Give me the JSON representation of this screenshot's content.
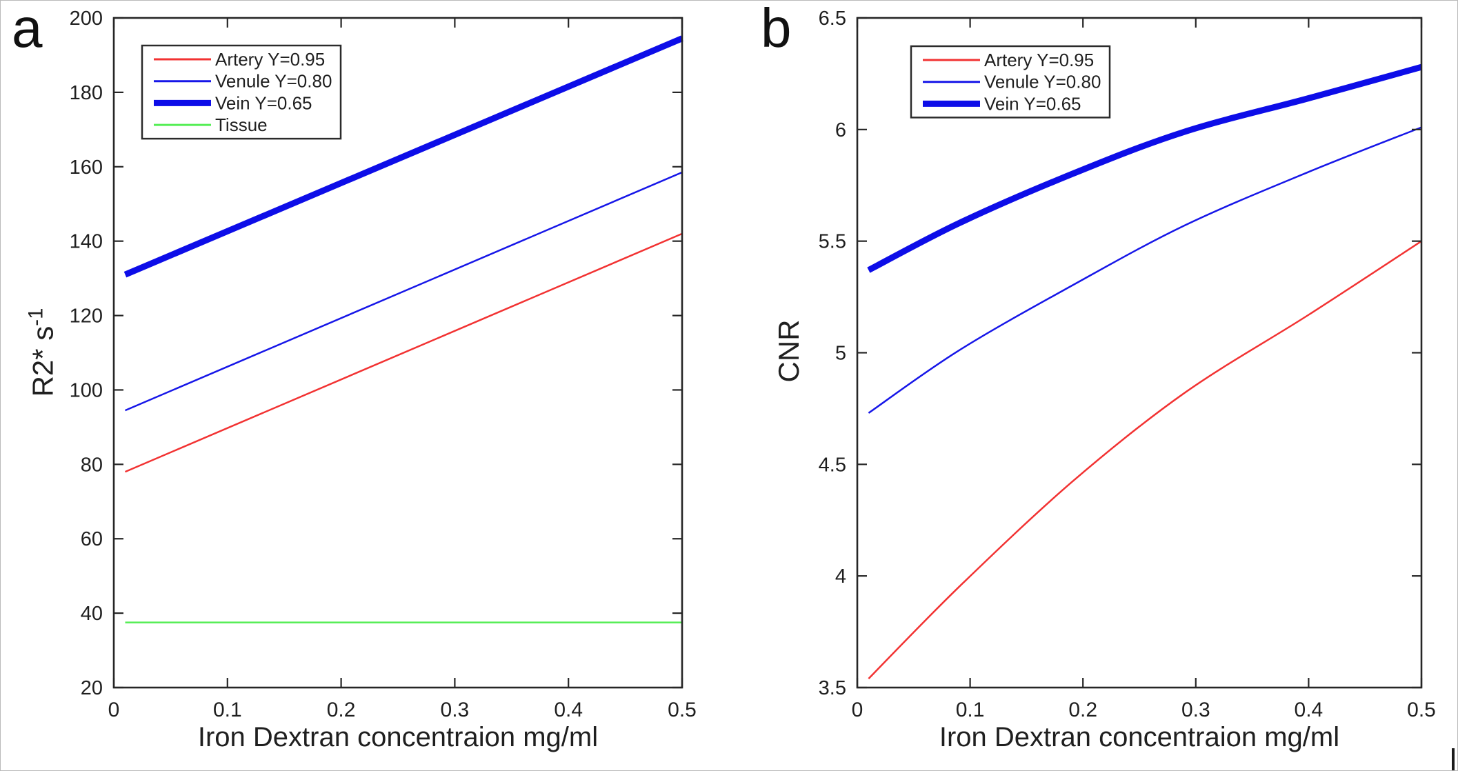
{
  "figure": {
    "background": "#ffffff",
    "border_color": "#b9b9b9",
    "axis_color": "#262626",
    "text_color": "#1f1f1f"
  },
  "chart_data": [
    {
      "type": "line",
      "panel_label": "a",
      "xlabel": "Iron Dextran concentraion mg/ml",
      "ylabel": "R2* s",
      "ylabel_superscript": "-1",
      "xlim": [
        0,
        0.5
      ],
      "ylim": [
        20,
        200
      ],
      "xticks": [
        0,
        0.1,
        0.2,
        0.3,
        0.4,
        0.5
      ],
      "xtick_labels": [
        "0",
        "0.1",
        "0.2",
        "0.3",
        "0.4",
        "0.5"
      ],
      "yticks": [
        20,
        40,
        60,
        80,
        100,
        120,
        140,
        160,
        180,
        200
      ],
      "ytick_labels": [
        "20",
        "40",
        "60",
        "80",
        "100",
        "120",
        "140",
        "160",
        "180",
        "200"
      ],
      "grid": false,
      "legend_position": "upper left inside",
      "series": [
        {
          "name": "Artery Y=0.95",
          "color": "#f23232",
          "line_width": 2.5,
          "x": [
            0.01,
            0.5
          ],
          "y": [
            78,
            142
          ]
        },
        {
          "name": "Venule Y=0.80",
          "color": "#1616e8",
          "line_width": 2.5,
          "x": [
            0.01,
            0.5
          ],
          "y": [
            94.5,
            158.5
          ]
        },
        {
          "name": "Vein Y=0.65",
          "color": "#0d0de8",
          "line_width": 9,
          "x": [
            0.01,
            0.5
          ],
          "y": [
            131,
            194.5
          ]
        },
        {
          "name": "Tissue",
          "color": "#55ee55",
          "line_width": 2.5,
          "x": [
            0.01,
            0.5
          ],
          "y": [
            37.5,
            37.5
          ]
        }
      ]
    },
    {
      "type": "line",
      "panel_label": "b",
      "xlabel": "Iron Dextran concentraion mg/ml",
      "ylabel": "CNR",
      "ylabel_superscript": "",
      "xlim": [
        0,
        0.5
      ],
      "ylim": [
        3.5,
        6.5
      ],
      "xticks": [
        0,
        0.1,
        0.2,
        0.3,
        0.4,
        0.5
      ],
      "xtick_labels": [
        "0",
        "0.1",
        "0.2",
        "0.3",
        "0.4",
        "0.5"
      ],
      "yticks": [
        3.5,
        4,
        4.5,
        5,
        5.5,
        6,
        6.5
      ],
      "ytick_labels": [
        "3.5",
        "4",
        "4.5",
        "5",
        "5.5",
        "6",
        "6.5"
      ],
      "grid": false,
      "legend_position": "upper left inside",
      "series": [
        {
          "name": "Artery Y=0.95",
          "color": "#f23232",
          "line_width": 2.5,
          "x": [
            0.01,
            0.09,
            0.19,
            0.29,
            0.4,
            0.5
          ],
          "y": [
            3.54,
            3.95,
            4.42,
            4.82,
            5.17,
            5.5
          ]
        },
        {
          "name": "Venule Y=0.80",
          "color": "#1616e8",
          "line_width": 2.5,
          "x": [
            0.01,
            0.09,
            0.19,
            0.29,
            0.4,
            0.5
          ],
          "y": [
            4.73,
            5.01,
            5.3,
            5.57,
            5.81,
            6.01
          ]
        },
        {
          "name": "Vein Y=0.65",
          "color": "#0d0de8",
          "line_width": 9,
          "x": [
            0.01,
            0.09,
            0.19,
            0.29,
            0.4,
            0.5
          ],
          "y": [
            5.37,
            5.58,
            5.8,
            5.99,
            6.14,
            6.28
          ]
        }
      ]
    }
  ]
}
